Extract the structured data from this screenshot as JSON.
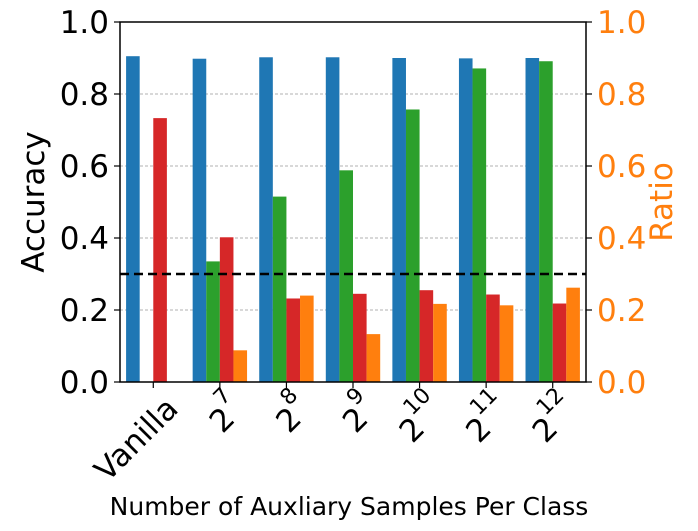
{
  "chart_data": {
    "type": "bar",
    "categories": [
      {
        "label": "Vanilla",
        "base": "",
        "exp": ""
      },
      {
        "label": "",
        "base": "2",
        "exp": "7"
      },
      {
        "label": "",
        "base": "2",
        "exp": "8"
      },
      {
        "label": "",
        "base": "2",
        "exp": "9"
      },
      {
        "label": "",
        "base": "2",
        "exp": "10"
      },
      {
        "label": "",
        "base": "2",
        "exp": "11"
      },
      {
        "label": "",
        "base": "2",
        "exp": "12"
      }
    ],
    "series": [
      {
        "name": "blue",
        "axis": "left",
        "color": "#1f77b4",
        "values": [
          0.905,
          0.898,
          0.902,
          0.902,
          0.9,
          0.899,
          0.9
        ]
      },
      {
        "name": "green",
        "axis": "left",
        "color": "#2ca02c",
        "values": [
          null,
          0.335,
          0.515,
          0.588,
          0.757,
          0.871,
          0.891
        ]
      },
      {
        "name": "red",
        "axis": "left",
        "color": "#d62728",
        "values": [
          0.733,
          0.402,
          0.232,
          0.245,
          0.255,
          0.243,
          0.218
        ]
      },
      {
        "name": "orange",
        "axis": "right",
        "color": "#ff7f0e",
        "values": [
          null,
          0.088,
          0.24,
          0.133,
          0.217,
          0.213,
          0.262
        ]
      }
    ],
    "reference_line": {
      "value": 0.3,
      "style": "dashed",
      "color": "#000000"
    },
    "xlabel": "Number of Auxliary Samples Per Class",
    "ylabel": "Accuracy",
    "ylabel_right": "Ratio",
    "ylim": [
      0.0,
      1.0
    ],
    "ylim_right": [
      0.0,
      1.0
    ],
    "yticks": [
      "0.0",
      "0.2",
      "0.4",
      "0.6",
      "0.8",
      "1.0"
    ],
    "yticks_right": [
      "0.0",
      "0.2",
      "0.4",
      "0.6",
      "0.8",
      "1.0"
    ],
    "grid": "horizontal dashed",
    "right_axis_color": "#ff7f0e"
  }
}
